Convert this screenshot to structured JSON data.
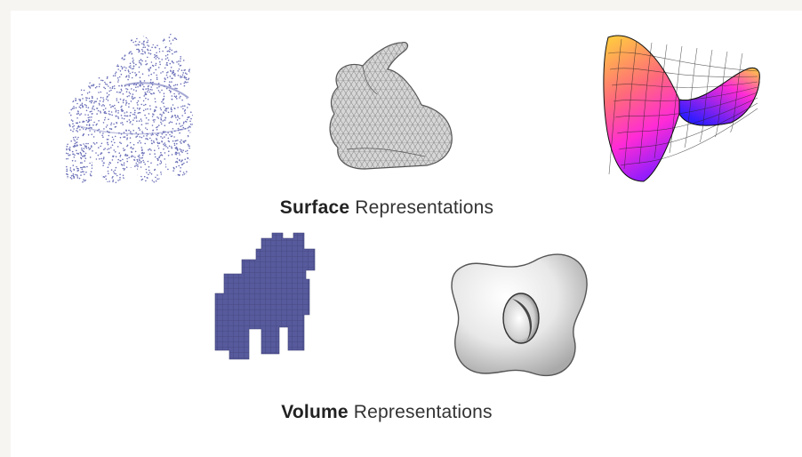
{
  "captions": {
    "surface_bold": "Surface",
    "surface_rest": "Representations",
    "volume_bold": "Volume",
    "volume_rest": "Representations"
  },
  "colors": {
    "background": "#f6f5f2",
    "panel": "#ffffff",
    "point_cloud": "#6b70b8",
    "mesh_fill": "#d6d6d6",
    "mesh_lines": "#555555",
    "voxel": "#575a9c",
    "implicit_surface": "#e8e8e8",
    "saddle_low": "#2f1cff",
    "saddle_mid": "#ff2bd6",
    "saddle_high": "#ffd23a"
  },
  "figures": [
    {
      "id": "point-cloud",
      "kind": "point cloud cow",
      "color": "point_cloud"
    },
    {
      "id": "triangle-mesh",
      "kind": "triangle mesh bunny",
      "color": "mesh_fill"
    },
    {
      "id": "parametric-saddle",
      "kind": "parametric saddle surface"
    },
    {
      "id": "voxel-cow",
      "kind": "voxel grid cow",
      "color": "voxel"
    },
    {
      "id": "implicit-surface",
      "kind": "implicit genus-one surface",
      "color": "implicit_surface"
    }
  ]
}
